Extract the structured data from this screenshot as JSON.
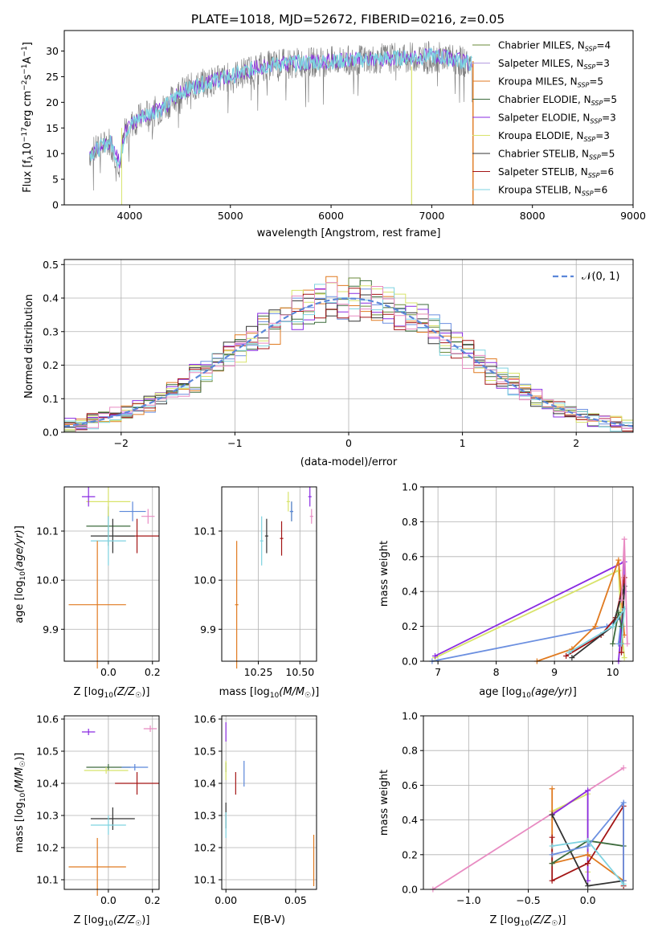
{
  "figure_title": "PLATE=1018, MJD=52672, FIBERID=0216, z=0.05",
  "colors": {
    "chabrier_miles": "#6a8a3a",
    "salpeter_miles": "#b49be0",
    "kroupa_miles": "#e07a20",
    "chabrier_elodie": "#3d6b3d",
    "salpeter_elodie": "#8a2be2",
    "kroupa_elodie": "#d8e36a",
    "chabrier_stelib": "#333333",
    "salpeter_stelib": "#a31515",
    "kroupa_stelib": "#7ed3e0",
    "normal_curve": "#5b87d9",
    "hist_blue": "#6b8fe0",
    "pink": "#e88bc2",
    "grid": "#b0b0b0"
  },
  "chart_data": [
    {
      "id": "spectrum",
      "type": "line",
      "xlabel": "wavelength [Angstrom, rest frame]",
      "ylabel_main": "Flux [f",
      "ylabel_tail": "erg cm",
      "ylabel_tail2": "s",
      "ylabel_tail3": "A",
      "xlim": [
        3350,
        9000
      ],
      "ylim": [
        0,
        34
      ],
      "xticks": [
        "4000",
        "5000",
        "6000",
        "7000",
        "8000",
        "9000"
      ],
      "yticks": [
        "0",
        "5",
        "10",
        "15",
        "20",
        "25",
        "30"
      ],
      "legend_position": "right",
      "legend": [
        {
          "label": "Chabrier MILES, N",
          "nssp": "4"
        },
        {
          "label": "Salpeter MILES, N",
          "nssp": "3"
        },
        {
          "label": "Kroupa MILES, N",
          "nssp": "5"
        },
        {
          "label": "Chabrier ELODIE, N",
          "nssp": "5"
        },
        {
          "label": "Salpeter ELODIE, N",
          "nssp": "3"
        },
        {
          "label": "Kroupa ELODIE, N",
          "nssp": "3"
        },
        {
          "label": "Chabrier STELIB, N",
          "nssp": "5"
        },
        {
          "label": "Salpeter STELIB, N",
          "nssp": "6"
        },
        {
          "label": "Kroupa STELIB, N",
          "nssp": "6"
        }
      ],
      "continuum": {
        "x": [
          3600,
          3700,
          3800,
          3900,
          3950,
          4000,
          4100,
          4200,
          4300,
          4400,
          4500,
          4700,
          5000,
          5300,
          5500,
          6000,
          6500,
          7000,
          7200,
          7400
        ],
        "y": [
          10,
          11,
          12.5,
          8,
          14,
          15.5,
          17,
          18,
          18.5,
          20,
          22,
          23.5,
          25,
          27,
          27.5,
          28,
          28.5,
          29,
          28.5,
          27.5
        ]
      }
    },
    {
      "id": "residuals",
      "type": "bar",
      "xlabel": "(data-model)/error",
      "ylabel": "Normed distribution",
      "xlim": [
        -2.5,
        2.5
      ],
      "ylim": [
        0,
        0.515
      ],
      "xticks": [
        "−2",
        "−1",
        "0",
        "1",
        "2"
      ],
      "yticks": [
        "0.0",
        "0.1",
        "0.2",
        "0.3",
        "0.4",
        "0.5"
      ],
      "legend": "𝒩(0, 1)",
      "legend_position": "top-right",
      "bin_width": 0.1
    },
    {
      "id": "age-vs-z",
      "type": "scatter",
      "xlabel": "Z [log",
      "ylabel": "age  [log",
      "xlim": [
        -0.2,
        0.23
      ],
      "ylim": [
        9.835,
        10.19
      ],
      "xticks": [
        "0.0",
        "0.2"
      ],
      "yticks": [
        "9.9",
        "10.0",
        "10.1"
      ],
      "points": [
        {
          "x": 0.0,
          "y": 10.11,
          "dx": 0.1,
          "dy": 0.04,
          "c": "chabrier_elodie"
        },
        {
          "x": 0.18,
          "y": 10.13,
          "dx": 0.03,
          "dy": 0.015,
          "c": "pink"
        },
        {
          "x": 0.11,
          "y": 10.14,
          "dx": 0.06,
          "dy": 0.02,
          "c": "normal_curve"
        },
        {
          "x": 0.0,
          "y": 10.16,
          "dx": 0.1,
          "dy": 0.03,
          "c": "kroupa_elodie"
        },
        {
          "x": -0.09,
          "y": 10.17,
          "dx": 0.03,
          "dy": 0.02,
          "c": "salpeter_elodie"
        },
        {
          "x": 0.13,
          "y": 10.09,
          "dx": 0.1,
          "dy": 0.035,
          "c": "salpeter_stelib"
        },
        {
          "x": 0.02,
          "y": 10.09,
          "dx": 0.1,
          "dy": 0.035,
          "c": "chabrier_stelib"
        },
        {
          "x": 0.0,
          "y": 10.08,
          "dx": 0.08,
          "dy": 0.05,
          "c": "kroupa_stelib"
        },
        {
          "x": -0.05,
          "y": 9.95,
          "dx": 0.13,
          "dy": 0.13,
          "c": "kroupa_miles"
        }
      ]
    },
    {
      "id": "age-vs-mass",
      "type": "scatter",
      "xlabel": "mass [log",
      "xlim": [
        10.03,
        10.6
      ],
      "ylim": [
        9.835,
        10.19
      ],
      "xticks": [
        "10.25",
        "10.50"
      ],
      "yticks": [
        "9.9",
        "10.0",
        "10.1"
      ],
      "points": [
        {
          "x": 10.45,
          "y": 10.14,
          "dx": 0.01,
          "dy": 0.02,
          "c": "chabrier_elodie"
        },
        {
          "x": 10.57,
          "y": 10.13,
          "dx": 0.01,
          "dy": 0.015,
          "c": "pink"
        },
        {
          "x": 10.45,
          "y": 10.14,
          "dx": 0.01,
          "dy": 0.02,
          "c": "normal_curve"
        },
        {
          "x": 10.43,
          "y": 10.16,
          "dx": 0.01,
          "dy": 0.02,
          "c": "kroupa_elodie"
        },
        {
          "x": 10.56,
          "y": 10.17,
          "dx": 0.01,
          "dy": 0.02,
          "c": "salpeter_elodie"
        },
        {
          "x": 10.39,
          "y": 10.085,
          "dx": 0.01,
          "dy": 0.035,
          "c": "salpeter_stelib"
        },
        {
          "x": 10.3,
          "y": 10.09,
          "dx": 0.01,
          "dy": 0.035,
          "c": "chabrier_stelib"
        },
        {
          "x": 10.27,
          "y": 10.08,
          "dx": 0.01,
          "dy": 0.05,
          "c": "kroupa_stelib"
        },
        {
          "x": 10.12,
          "y": 9.95,
          "dx": 0.01,
          "dy": 0.13,
          "c": "kroupa_miles"
        }
      ]
    },
    {
      "id": "weight-vs-age",
      "type": "line",
      "xlabel": "age  [log",
      "ylabel": "mass weight",
      "xlim": [
        6.75,
        10.35
      ],
      "ylim": [
        0,
        1
      ],
      "xticks": [
        "7",
        "8",
        "9",
        "10"
      ],
      "yticks": [
        "0.0",
        "0.2",
        "0.4",
        "0.6",
        "0.8",
        "1.0"
      ]
    },
    {
      "id": "mass-vs-z",
      "type": "scatter",
      "xlabel": "Z [log",
      "ylabel": "mass [log",
      "xlim": [
        -0.2,
        0.23
      ],
      "ylim": [
        10.07,
        10.61
      ],
      "xticks": [
        "0.0",
        "0.2"
      ],
      "yticks": [
        "10.1",
        "10.2",
        "10.3",
        "10.4",
        "10.5",
        "10.6"
      ],
      "points": [
        {
          "x": 0.0,
          "y": 10.45,
          "dx": 0.1,
          "dy": 0.01,
          "c": "chabrier_elodie"
        },
        {
          "x": 0.19,
          "y": 10.57,
          "dx": 0.03,
          "dy": 0.01,
          "c": "pink"
        },
        {
          "x": 0.12,
          "y": 10.45,
          "dx": 0.06,
          "dy": 0.01,
          "c": "normal_curve"
        },
        {
          "x": -0.01,
          "y": 10.44,
          "dx": 0.1,
          "dy": 0.01,
          "c": "kroupa_elodie"
        },
        {
          "x": -0.09,
          "y": 10.56,
          "dx": 0.03,
          "dy": 0.01,
          "c": "salpeter_elodie"
        },
        {
          "x": 0.13,
          "y": 10.4,
          "dx": 0.1,
          "dy": 0.035,
          "c": "salpeter_stelib"
        },
        {
          "x": 0.02,
          "y": 10.29,
          "dx": 0.1,
          "dy": 0.035,
          "c": "chabrier_stelib"
        },
        {
          "x": 0.0,
          "y": 10.27,
          "dx": 0.08,
          "dy": 0.03,
          "c": "kroupa_stelib"
        },
        {
          "x": -0.05,
          "y": 10.14,
          "dx": 0.13,
          "dy": 0.09,
          "c": "kroupa_miles"
        }
      ]
    },
    {
      "id": "mass-vs-ebv",
      "type": "scatter",
      "xlabel": "E(B-V)",
      "xlim": [
        -0.003,
        0.065
      ],
      "ylim": [
        10.07,
        10.61
      ],
      "xticks": [
        "0.00",
        "0.05"
      ],
      "yticks": [
        "10.1",
        "10.2",
        "10.3",
        "10.4",
        "10.5",
        "10.6"
      ],
      "points": [
        {
          "x": 0.0,
          "y": 10.45,
          "dy": 0.015,
          "c": "chabrier_elodie"
        },
        {
          "x": 0.0,
          "y": 10.56,
          "dy": 0.03,
          "c": "salpeter_elodie"
        },
        {
          "x": 0.0,
          "y": 10.44,
          "dy": 0.03,
          "c": "kroupa_elodie"
        },
        {
          "x": 0.0,
          "y": 10.3,
          "dy": 0.04,
          "c": "chabrier_stelib"
        },
        {
          "x": 0.0,
          "y": 10.27,
          "dy": 0.04,
          "c": "kroupa_stelib"
        },
        {
          "x": 0.007,
          "y": 10.4,
          "dy": 0.035,
          "c": "salpeter_stelib"
        },
        {
          "x": 0.013,
          "y": 10.43,
          "dy": 0.04,
          "c": "normal_curve"
        },
        {
          "x": 0.063,
          "y": 10.16,
          "dy": 0.08,
          "c": "kroupa_miles"
        }
      ]
    },
    {
      "id": "weight-vs-z",
      "type": "line",
      "xlabel": "Z [log",
      "ylabel": "mass weight",
      "xlim": [
        -1.38,
        0.38
      ],
      "ylim": [
        0,
        1
      ],
      "xticks": [
        "−1.0",
        "−0.5",
        "0.0"
      ],
      "yticks": [
        "0.0",
        "0.2",
        "0.4",
        "0.6",
        "0.8",
        "1.0"
      ]
    }
  ]
}
